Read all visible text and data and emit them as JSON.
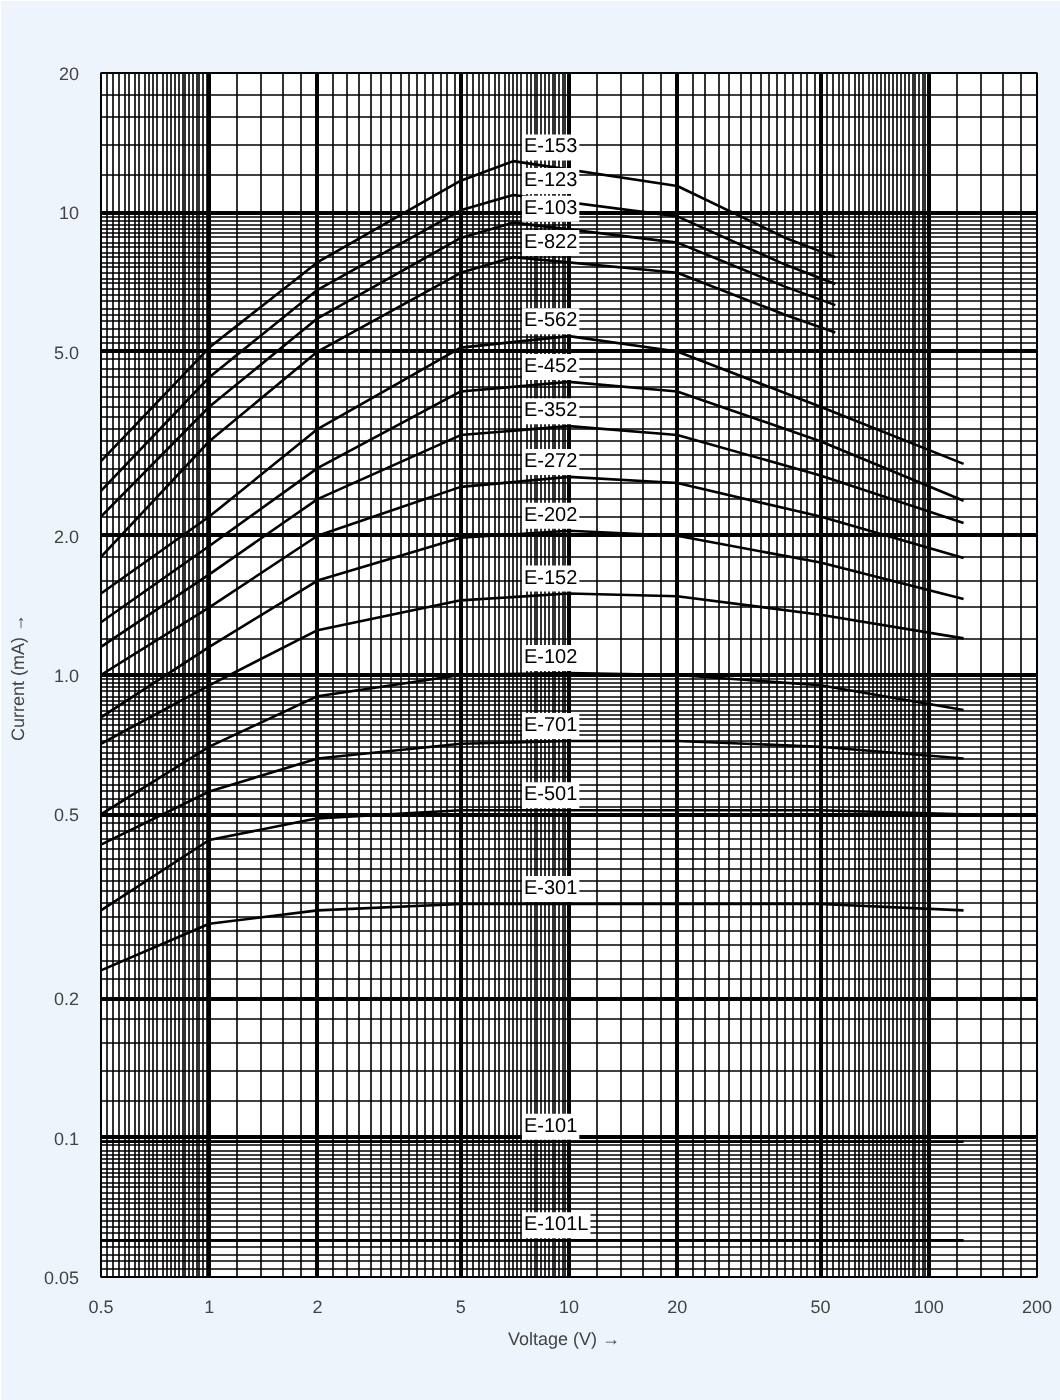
{
  "chart_data": {
    "type": "line",
    "xlabel": "Voltage  (V)  →",
    "ylabel": "Current (mA)  →",
    "log": "xy",
    "grid": true,
    "marker": "none",
    "line_style": "solid",
    "xlim": [
      0.5,
      200
    ],
    "ylim": [
      0.05,
      20
    ],
    "xticks": [
      0.5,
      1,
      2,
      5,
      10,
      20,
      50,
      100,
      200
    ],
    "yticks": [
      0.05,
      0.1,
      0.2,
      0.5,
      {
        "value": 1,
        "label": "1.0"
      },
      {
        "value": 2,
        "label": "2.0"
      },
      {
        "value": 5,
        "label": "5.0"
      },
      10,
      20
    ],
    "series": [
      {
        "name": "E-153",
        "color": "#000000",
        "x": [
          0.5,
          1,
          2,
          5,
          7,
          20,
          40,
          55
        ],
        "values": [
          2.9,
          5.1,
          7.8,
          11.7,
          12.9,
          11.4,
          8.8,
          8.0
        ]
      },
      {
        "name": "E-123",
        "color": "#000000",
        "x": [
          0.5,
          1,
          2,
          5,
          7,
          20,
          40,
          55
        ],
        "values": [
          2.5,
          4.4,
          6.8,
          10.1,
          10.9,
          9.8,
          7.7,
          7.0
        ]
      },
      {
        "name": "E-103",
        "color": "#000000",
        "x": [
          0.5,
          1,
          2,
          5,
          7,
          20,
          40,
          55
        ],
        "values": [
          2.2,
          3.8,
          5.9,
          8.8,
          9.5,
          8.6,
          6.9,
          6.3
        ]
      },
      {
        "name": "E-822",
        "color": "#000000",
        "x": [
          0.5,
          1,
          2,
          5,
          7,
          20,
          40,
          55
        ],
        "values": [
          1.8,
          3.2,
          5.0,
          7.4,
          8.0,
          7.4,
          6.0,
          5.5
        ]
      },
      {
        "name": "E-562",
        "color": "#000000",
        "x": [
          0.5,
          1,
          2,
          5,
          10,
          20,
          50,
          125
        ],
        "values": [
          1.5,
          2.2,
          3.4,
          5.1,
          5.4,
          5.0,
          3.8,
          2.86
        ]
      },
      {
        "name": "E-452",
        "color": "#000000",
        "x": [
          0.5,
          1,
          2,
          5,
          10,
          20,
          50,
          125
        ],
        "values": [
          1.3,
          1.9,
          2.8,
          4.1,
          4.3,
          4.1,
          3.2,
          2.38
        ]
      },
      {
        "name": "E-352",
        "color": "#000000",
        "x": [
          0.5,
          1,
          2,
          5,
          10,
          20,
          50,
          125
        ],
        "values": [
          1.15,
          1.65,
          2.4,
          3.3,
          3.45,
          3.3,
          2.7,
          2.13
        ]
      },
      {
        "name": "E-272",
        "color": "#000000",
        "x": [
          0.5,
          1,
          2,
          5,
          10,
          20,
          50,
          125
        ],
        "values": [
          1.0,
          1.4,
          2.0,
          2.55,
          2.68,
          2.6,
          2.2,
          1.79
        ]
      },
      {
        "name": "E-202",
        "color": "#000000",
        "x": [
          0.5,
          1,
          2,
          5,
          10,
          20,
          50,
          125
        ],
        "values": [
          0.81,
          1.15,
          1.6,
          1.98,
          2.05,
          2.0,
          1.75,
          1.46
        ]
      },
      {
        "name": "E-152",
        "color": "#000000",
        "x": [
          0.5,
          1,
          2,
          5,
          10,
          20,
          50,
          125
        ],
        "values": [
          0.71,
          0.95,
          1.25,
          1.45,
          1.5,
          1.48,
          1.35,
          1.2
        ]
      },
      {
        "name": "E-102",
        "color": "#000000",
        "x": [
          0.5,
          1,
          2,
          5,
          10,
          20,
          50,
          125
        ],
        "values": [
          0.5,
          0.7,
          0.9,
          1.0,
          1.01,
          1.0,
          0.95,
          0.84
        ]
      },
      {
        "name": "E-701",
        "color": "#000000",
        "x": [
          0.5,
          1,
          2,
          5,
          10,
          20,
          50,
          125
        ],
        "values": [
          0.43,
          0.56,
          0.66,
          0.71,
          0.72,
          0.72,
          0.7,
          0.66
        ]
      },
      {
        "name": "E-501",
        "color": "#000000",
        "x": [
          0.5,
          1,
          2,
          5,
          10,
          20,
          50,
          125
        ],
        "values": [
          0.31,
          0.44,
          0.49,
          0.51,
          0.51,
          0.51,
          0.51,
          0.5
        ]
      },
      {
        "name": "E-301",
        "color": "#000000",
        "x": [
          0.5,
          1,
          2,
          5,
          10,
          20,
          50,
          125
        ],
        "values": [
          0.23,
          0.29,
          0.31,
          0.32,
          0.32,
          0.32,
          0.32,
          0.31
        ]
      },
      {
        "name": "E-101",
        "color": "#000000",
        "x": [
          0.5,
          10,
          125
        ],
        "values": [
          0.098,
          0.098,
          0.098
        ]
      },
      {
        "name": "E-101L",
        "color": "#000000",
        "x": [
          0.5,
          10,
          125
        ],
        "values": [
          0.06,
          0.06,
          0.06
        ]
      }
    ]
  }
}
